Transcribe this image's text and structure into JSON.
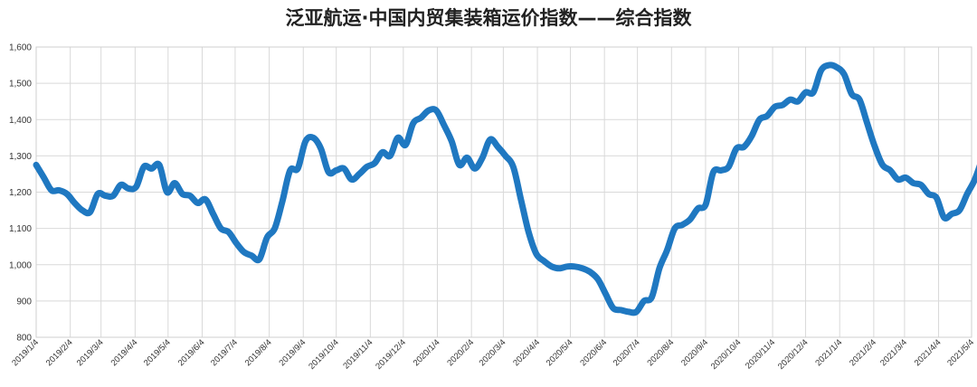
{
  "chart_data": {
    "type": "line",
    "title": "泛亚航运·中国内贸集装箱运价指数——综合指数",
    "xlabel": "",
    "ylabel": "",
    "ylim": [
      800,
      1600
    ],
    "yticks": [
      "800",
      "900",
      "1,000",
      "1,100",
      "1,200",
      "1,300",
      "1,400",
      "1,500",
      "1,600"
    ],
    "xticks": [
      "2019/1/4",
      "2019/2/4",
      "2019/3/4",
      "2019/4/4",
      "2019/5/4",
      "2019/6/4",
      "2019/7/4",
      "2019/8/4",
      "2019/9/4",
      "2019/10/4",
      "2019/11/4",
      "2019/12/4",
      "2020/1/4",
      "2020/2/4",
      "2020/3/4",
      "2020/4/4",
      "2020/5/4",
      "2020/6/4",
      "2020/7/4",
      "2020/8/4",
      "2020/9/4",
      "2020/10/4",
      "2020/11/4",
      "2020/12/4",
      "2021/1/4",
      "2021/2/4",
      "2021/3/4",
      "2021/4/4",
      "2021/5/4"
    ],
    "grid": true,
    "line_color": "#1f78c1",
    "series": [
      {
        "x": [
          "2019/1/4",
          "2019/1/11",
          "2019/1/18",
          "2019/1/25",
          "2019/2/1",
          "2019/2/8",
          "2019/2/15",
          "2019/2/22",
          "2019/3/1",
          "2019/3/8",
          "2019/3/15",
          "2019/3/22",
          "2019/3/29",
          "2019/4/5",
          "2019/4/12",
          "2019/4/19",
          "2019/4/26",
          "2019/5/3",
          "2019/5/10",
          "2019/5/17",
          "2019/5/24",
          "2019/5/31",
          "2019/6/7",
          "2019/6/14",
          "2019/6/21",
          "2019/6/28",
          "2019/7/5",
          "2019/7/12",
          "2019/7/19",
          "2019/7/26",
          "2019/8/2",
          "2019/8/9",
          "2019/8/16",
          "2019/8/23",
          "2019/8/30",
          "2019/9/6",
          "2019/9/13",
          "2019/9/20",
          "2019/9/27",
          "2019/10/4",
          "2019/10/11",
          "2019/10/18",
          "2019/10/25",
          "2019/11/1",
          "2019/11/8",
          "2019/11/15",
          "2019/11/22",
          "2019/11/29",
          "2019/12/6",
          "2019/12/13",
          "2019/12/20",
          "2019/12/27",
          "2020/1/3",
          "2020/1/10",
          "2020/1/17",
          "2020/1/24",
          "2020/1/31",
          "2020/2/7",
          "2020/2/14",
          "2020/2/21",
          "2020/2/28",
          "2020/3/6",
          "2020/3/13",
          "2020/3/20",
          "2020/3/27",
          "2020/4/3",
          "2020/4/10",
          "2020/4/17",
          "2020/4/24",
          "2020/5/1",
          "2020/5/8",
          "2020/5/15",
          "2020/5/22",
          "2020/5/29",
          "2020/6/5",
          "2020/6/12",
          "2020/6/19",
          "2020/6/26",
          "2020/7/3",
          "2020/7/10",
          "2020/7/17",
          "2020/7/24",
          "2020/7/31",
          "2020/8/7",
          "2020/8/14",
          "2020/8/21",
          "2020/8/28",
          "2020/9/4",
          "2020/9/11",
          "2020/9/18",
          "2020/9/25",
          "2020/10/2",
          "2020/10/9",
          "2020/10/16",
          "2020/10/23",
          "2020/10/30",
          "2020/11/6",
          "2020/11/13",
          "2020/11/20",
          "2020/11/27",
          "2020/12/4",
          "2020/12/11",
          "2020/12/18",
          "2020/12/25",
          "2021/1/1",
          "2021/1/8",
          "2021/1/15",
          "2021/1/22",
          "2021/1/29",
          "2021/2/5",
          "2021/2/12",
          "2021/2/19",
          "2021/2/26",
          "2021/3/5",
          "2021/3/12",
          "2021/3/19",
          "2021/3/26",
          "2021/4/2",
          "2021/4/9",
          "2021/4/16",
          "2021/4/23",
          "2021/4/30",
          "2021/5/7",
          "2021/5/14"
        ],
        "values": [
          1275,
          1240,
          1205,
          1205,
          1195,
          1170,
          1150,
          1145,
          1195,
          1190,
          1190,
          1220,
          1210,
          1215,
          1270,
          1265,
          1275,
          1200,
          1225,
          1195,
          1190,
          1170,
          1180,
          1140,
          1100,
          1090,
          1060,
          1035,
          1025,
          1015,
          1075,
          1100,
          1175,
          1260,
          1265,
          1340,
          1350,
          1320,
          1255,
          1260,
          1265,
          1235,
          1250,
          1270,
          1280,
          1310,
          1300,
          1350,
          1330,
          1390,
          1405,
          1425,
          1425,
          1385,
          1340,
          1275,
          1295,
          1265,
          1295,
          1345,
          1325,
          1300,
          1270,
          1180,
          1090,
          1030,
          1010,
          995,
          990,
          995,
          995,
          990,
          980,
          960,
          920,
          880,
          875,
          870,
          870,
          900,
          910,
          990,
          1040,
          1100,
          1110,
          1125,
          1155,
          1165,
          1255,
          1260,
          1270,
          1320,
          1325,
          1355,
          1400,
          1410,
          1435,
          1440,
          1455,
          1450,
          1475,
          1475,
          1535,
          1550,
          1545,
          1525,
          1470,
          1455,
          1390,
          1325,
          1275,
          1260,
          1235,
          1240,
          1225,
          1220,
          1195,
          1185,
          1130,
          1140,
          1150,
          1195,
          1235,
          1295
        ]
      }
    ]
  }
}
